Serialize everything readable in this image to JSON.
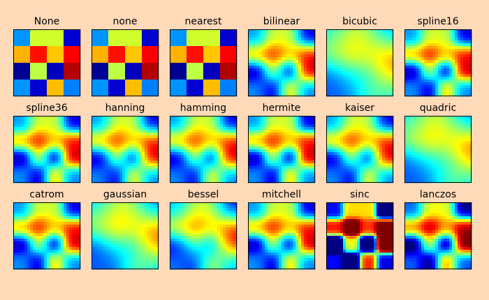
{
  "chart_data": {
    "type": "heatmap",
    "colormap": "jet",
    "background": "#ffdab9",
    "grid": false,
    "axes_ticks": false,
    "data_shape": [
      4,
      4
    ],
    "grid_rows": 3,
    "grid_cols": 6,
    "values": [
      [
        0.27,
        0.58,
        0.58,
        0.08
      ],
      [
        0.7,
        0.86,
        0.68,
        0.88
      ],
      [
        0.02,
        0.56,
        0.06,
        0.95
      ],
      [
        0.27,
        0.08,
        0.69,
        0.25
      ]
    ],
    "methods": [
      "None",
      "none",
      "nearest",
      "bilinear",
      "bicubic",
      "spline16",
      "spline36",
      "hanning",
      "hamming",
      "hermite",
      "kaiser",
      "quadric",
      "catrom",
      "gaussian",
      "bessel",
      "mitchell",
      "sinc",
      "lanczos"
    ]
  }
}
